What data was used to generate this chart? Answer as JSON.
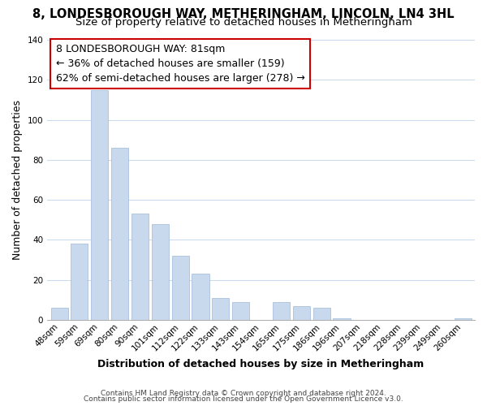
{
  "title_line1": "8, LONDESBOROUGH WAY, METHERINGHAM, LINCOLN, LN4 3HL",
  "title_line2": "Size of property relative to detached houses in Metheringham",
  "xlabel": "Distribution of detached houses by size in Metheringham",
  "ylabel": "Number of detached properties",
  "categories": [
    "48sqm",
    "59sqm",
    "69sqm",
    "80sqm",
    "90sqm",
    "101sqm",
    "112sqm",
    "122sqm",
    "133sqm",
    "143sqm",
    "154sqm",
    "165sqm",
    "175sqm",
    "186sqm",
    "196sqm",
    "207sqm",
    "218sqm",
    "228sqm",
    "239sqm",
    "249sqm",
    "260sqm"
  ],
  "values": [
    6,
    38,
    115,
    86,
    53,
    48,
    32,
    23,
    11,
    9,
    0,
    9,
    7,
    6,
    1,
    0,
    0,
    0,
    0,
    0,
    1
  ],
  "bar_color": "#c8d9ee",
  "bar_edge_color": "#a0b8d8",
  "annotation_line1": "8 LONDESBOROUGH WAY: 81sqm",
  "annotation_line2": "← 36% of detached houses are smaller (159)",
  "annotation_line3": "62% of semi-detached houses are larger (278) →",
  "annotation_box_edgecolor": "#cc0000",
  "annotation_box_facecolor": "#ffffff",
  "ylim": [
    0,
    140
  ],
  "yticks": [
    0,
    20,
    40,
    60,
    80,
    100,
    120,
    140
  ],
  "footer_line1": "Contains HM Land Registry data © Crown copyright and database right 2024.",
  "footer_line2": "Contains public sector information licensed under the Open Government Licence v3.0.",
  "background_color": "#ffffff",
  "grid_color": "#c8d9ee",
  "title_fontsize": 10.5,
  "subtitle_fontsize": 9.5,
  "axis_label_fontsize": 9,
  "tick_fontsize": 7.5,
  "footer_fontsize": 6.5,
  "annotation_fontsize": 9
}
